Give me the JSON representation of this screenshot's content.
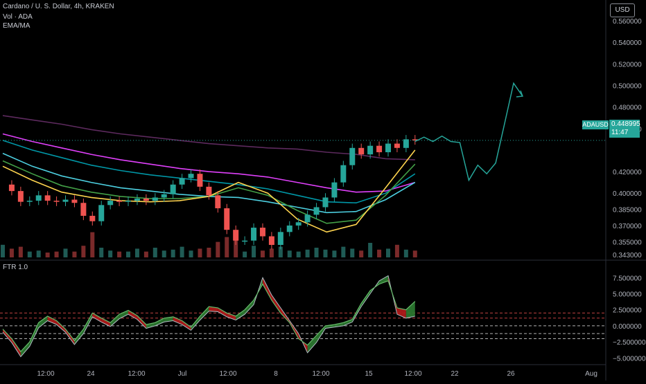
{
  "header": {
    "symbol_title": "Cardano / U. S. Dollar, 4h, KRAKEN",
    "volume_label": "Vol · ADA",
    "ema_label": "EMA/MA",
    "currency": "USD"
  },
  "price_badge": {
    "symbol": "ADAUSD",
    "price": "0.448995",
    "countdown": "11:47"
  },
  "colors": {
    "up": "#26a69a",
    "down": "#ef5350",
    "projection": "#26a69a",
    "axis_text": "#b2b5be",
    "background": "#000000"
  },
  "chart_data": [
    {
      "type": "candlestick",
      "title": "Cardano / U. S. Dollar, 4h, KRAKEN",
      "x_ticks": [
        "12:00",
        "24",
        "12:00",
        "Jul",
        "12:00",
        "8",
        "12:00",
        "15",
        "12:00",
        "22",
        "26",
        "Aug"
      ],
      "y_ticks": [
        "0.560000",
        "0.540000",
        "0.520000",
        "0.500000",
        "0.480000",
        "0.460000",
        "0.420000",
        "0.400000",
        "0.385000",
        "0.370000",
        "0.355000",
        "0.343000"
      ],
      "ylim": [
        0.343,
        0.56
      ],
      "last_price": 0.448995,
      "price_path_x": [
        0,
        3,
        6,
        9,
        12,
        15,
        18,
        21,
        24,
        27,
        30,
        33,
        36,
        39,
        42,
        45,
        48,
        51,
        54,
        57,
        60,
        63,
        66,
        69,
        72,
        75,
        78,
        81,
        84,
        87,
        90,
        93,
        96,
        99,
        102,
        105,
        108,
        111,
        114,
        117,
        120,
        123,
        126,
        129,
        132,
        135,
        138
      ],
      "price_path_y": [
        0.408,
        0.402,
        0.392,
        0.393,
        0.398,
        0.393,
        0.392,
        0.394,
        0.391,
        0.379,
        0.374,
        0.389,
        0.393,
        0.392,
        0.393,
        0.395,
        0.393,
        0.396,
        0.399,
        0.408,
        0.414,
        0.418,
        0.406,
        0.398,
        0.386,
        0.366,
        0.356,
        0.356,
        0.368,
        0.36,
        0.352,
        0.364,
        0.37,
        0.373,
        0.38,
        0.387,
        0.396,
        0.41,
        0.426,
        0.442,
        0.436,
        0.444,
        0.438,
        0.446,
        0.442,
        0.45,
        0.449
      ],
      "projection": {
        "x": [
          138,
          141,
          144,
          147,
          150,
          153,
          156,
          159,
          162,
          165,
          168,
          171,
          174
        ],
        "y": [
          0.448,
          0.452,
          0.448,
          0.453,
          0.448,
          0.447,
          0.412,
          0.426,
          0.418,
          0.428,
          0.465,
          0.502,
          0.49
        ]
      },
      "volume": {
        "label": "Vol · ADA",
        "values": [
          1.3,
          0.9,
          1.1,
          0.6,
          0.7,
          0.5,
          0.6,
          0.9,
          0.6,
          1.2,
          2.6,
          1.0,
          0.7,
          0.6,
          0.6,
          0.9,
          0.6,
          1.0,
          0.7,
          0.8,
          1.1,
          0.7,
          0.9,
          1.0,
          1.6,
          2.1,
          1.8,
          0.6,
          1.2,
          0.7,
          0.9,
          1.1,
          0.7,
          0.6,
          0.8,
          1.0,
          0.8,
          0.7,
          1.1,
          0.9,
          0.7,
          1.5,
          0.8,
          0.9,
          1.3,
          0.8,
          0.7
        ]
      },
      "moving_averages": [
        {
          "color": "#5d2a5e",
          "values": [
            0.472,
            0.468,
            0.464,
            0.459,
            0.455,
            0.452,
            0.449,
            0.446,
            0.444,
            0.442,
            0.441,
            0.438,
            0.436,
            0.432,
            0.431
          ]
        },
        {
          "color": "#e040fb",
          "values": [
            0.455,
            0.448,
            0.442,
            0.436,
            0.431,
            0.427,
            0.423,
            0.42,
            0.418,
            0.415,
            0.41,
            0.405,
            0.401,
            0.402,
            0.41
          ]
        },
        {
          "color": "#0097a7",
          "values": [
            0.449,
            0.44,
            0.433,
            0.426,
            0.421,
            0.417,
            0.414,
            0.411,
            0.408,
            0.404,
            0.398,
            0.392,
            0.391,
            0.4,
            0.418
          ]
        },
        {
          "color": "#4dd0e1",
          "values": [
            0.437,
            0.425,
            0.416,
            0.41,
            0.405,
            0.402,
            0.399,
            0.397,
            0.396,
            0.392,
            0.387,
            0.382,
            0.383,
            0.394,
            0.41
          ]
        },
        {
          "color": "#43a047",
          "values": [
            0.43,
            0.418,
            0.407,
            0.401,
            0.397,
            0.395,
            0.395,
            0.397,
            0.405,
            0.398,
            0.384,
            0.372,
            0.375,
            0.398,
            0.427
          ]
        },
        {
          "color": "#ffd54f",
          "values": [
            0.425,
            0.412,
            0.401,
            0.396,
            0.393,
            0.392,
            0.393,
            0.397,
            0.41,
            0.4,
            0.376,
            0.364,
            0.371,
            0.405,
            0.44
          ]
        }
      ]
    },
    {
      "type": "line",
      "title": "FTR 1.0",
      "y_ticks": [
        "7.500000",
        "5.000000",
        "2.500000",
        "0.000000",
        "−2.500000",
        "−5.000000"
      ],
      "ylim": [
        -5.5,
        8.5
      ],
      "levels": [
        2.0,
        1.2,
        0.0,
        -1.2,
        -2.0
      ],
      "x": [
        0,
        3,
        6,
        9,
        12,
        15,
        18,
        21,
        24,
        27,
        30,
        33,
        36,
        39,
        42,
        45,
        48,
        51,
        54,
        57,
        60,
        63,
        66,
        69,
        72,
        75,
        78,
        81,
        84,
        87,
        90,
        93,
        96,
        99,
        102,
        105,
        108,
        111,
        114,
        117,
        120,
        123,
        126,
        129,
        132,
        135,
        138
      ],
      "series": [
        {
          "values": [
            -0.5,
            -2.0,
            -4.0,
            -2.5,
            0.5,
            1.5,
            0.8,
            -0.5,
            -2.3,
            -0.5,
            2.0,
            1.2,
            0.5,
            1.8,
            2.4,
            1.6,
            0.2,
            0.5,
            1.2,
            1.4,
            0.8,
            -0.2,
            1.5,
            3.0,
            2.8,
            2.0,
            1.5,
            2.5,
            4.0,
            6.5,
            4.0,
            2.0,
            0.5,
            -2.0,
            -3.0,
            -1.5,
            0.0,
            0.2,
            0.5,
            1.0,
            3.5,
            5.5,
            6.5,
            7.0,
            2.8,
            2.5,
            3.8
          ]
        },
        {
          "values": [
            -1.0,
            -2.6,
            -4.8,
            -3.2,
            -0.3,
            0.8,
            0.2,
            -1.0,
            -2.9,
            -1.2,
            1.4,
            0.6,
            -0.1,
            1.1,
            1.8,
            1.0,
            -0.4,
            0.0,
            0.6,
            0.8,
            0.2,
            -0.7,
            0.9,
            2.3,
            2.2,
            1.4,
            0.9,
            1.8,
            3.3,
            7.5,
            4.8,
            2.8,
            0.8,
            -1.2,
            -4.2,
            -2.6,
            -0.4,
            -0.2,
            0.0,
            0.6,
            3.0,
            5.0,
            7.0,
            7.8,
            1.8,
            1.2,
            1.5
          ]
        }
      ]
    }
  ]
}
